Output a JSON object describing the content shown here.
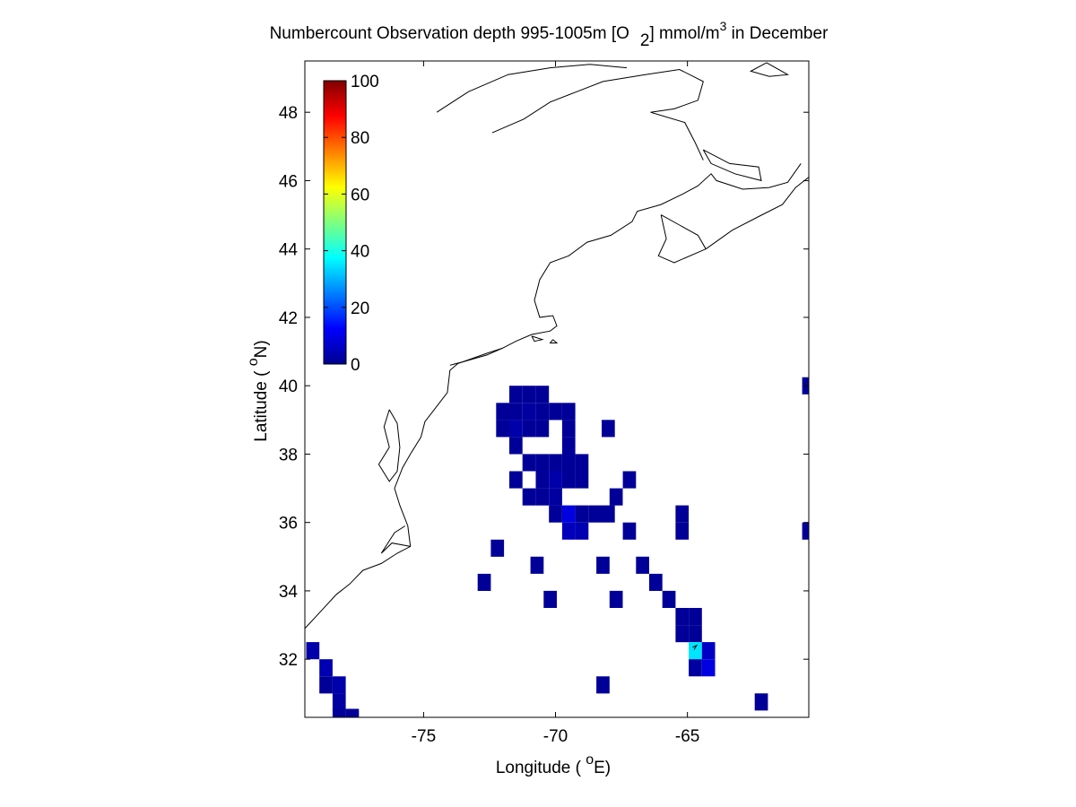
{
  "chart_data": {
    "type": "heatmap",
    "title": {
      "main": "Numbercount Observation depth 995-1005m [O",
      "sub": "2",
      "mid": "] mmol/m",
      "sup": "3",
      "tail": " in December"
    },
    "xlabel": {
      "pre": "Longitude ( ",
      "sup": "o",
      "post": "E)"
    },
    "ylabel": {
      "pre": "Latitude ( ",
      "sup": "o",
      "post": "N)"
    },
    "xlim": [
      -79.5,
      -60.4
    ],
    "ylim": [
      30.3,
      49.5
    ],
    "xticks": [
      -75,
      -70,
      -65
    ],
    "xtick_labels": [
      "-75",
      "-70",
      "-65"
    ],
    "yticks": [
      32,
      34,
      36,
      38,
      40,
      42,
      44,
      46,
      48
    ],
    "ytick_labels": [
      "32",
      "34",
      "36",
      "38",
      "40",
      "42",
      "44",
      "46",
      "48"
    ],
    "colorbar": {
      "range": [
        0,
        100
      ],
      "ticks": [
        0,
        20,
        40,
        60,
        80,
        100
      ],
      "tick_labels": [
        "0",
        "20",
        "40",
        "60",
        "80",
        "100"
      ],
      "colormap": "jet"
    },
    "grid": false,
    "cell_size": 0.5,
    "cells": [
      {
        "lon": -71.5,
        "lat": 39.75,
        "value": 1
      },
      {
        "lon": -71.0,
        "lat": 39.75,
        "value": 1
      },
      {
        "lon": -70.5,
        "lat": 39.75,
        "value": 1
      },
      {
        "lon": -72.0,
        "lat": 39.25,
        "value": 1
      },
      {
        "lon": -71.5,
        "lat": 39.25,
        "value": 1
      },
      {
        "lon": -71.0,
        "lat": 39.25,
        "value": 2
      },
      {
        "lon": -70.5,
        "lat": 39.25,
        "value": 1
      },
      {
        "lon": -70.0,
        "lat": 39.25,
        "value": 1
      },
      {
        "lon": -69.5,
        "lat": 39.25,
        "value": 1
      },
      {
        "lon": -72.0,
        "lat": 38.75,
        "value": 1
      },
      {
        "lon": -71.5,
        "lat": 38.75,
        "value": 3
      },
      {
        "lon": -71.0,
        "lat": 38.75,
        "value": 1
      },
      {
        "lon": -70.5,
        "lat": 38.75,
        "value": 1
      },
      {
        "lon": -69.5,
        "lat": 38.75,
        "value": 1
      },
      {
        "lon": -68.0,
        "lat": 38.75,
        "value": 1
      },
      {
        "lon": -71.5,
        "lat": 38.25,
        "value": 1
      },
      {
        "lon": -69.5,
        "lat": 38.25,
        "value": 1
      },
      {
        "lon": -71.0,
        "lat": 37.75,
        "value": 1
      },
      {
        "lon": -70.5,
        "lat": 37.75,
        "value": 1
      },
      {
        "lon": -70.0,
        "lat": 37.75,
        "value": 1
      },
      {
        "lon": -69.5,
        "lat": 37.75,
        "value": 1
      },
      {
        "lon": -69.0,
        "lat": 37.75,
        "value": 1
      },
      {
        "lon": -71.5,
        "lat": 37.25,
        "value": 1
      },
      {
        "lon": -70.5,
        "lat": 37.25,
        "value": 1
      },
      {
        "lon": -70.0,
        "lat": 37.25,
        "value": 3
      },
      {
        "lon": -69.5,
        "lat": 37.25,
        "value": 1
      },
      {
        "lon": -69.0,
        "lat": 37.25,
        "value": 1
      },
      {
        "lon": -67.2,
        "lat": 37.25,
        "value": 1
      },
      {
        "lon": -71.0,
        "lat": 36.75,
        "value": 1
      },
      {
        "lon": -70.5,
        "lat": 36.75,
        "value": 1
      },
      {
        "lon": -70.0,
        "lat": 36.75,
        "value": 2
      },
      {
        "lon": -67.7,
        "lat": 36.75,
        "value": 1
      },
      {
        "lon": -70.0,
        "lat": 36.25,
        "value": 1
      },
      {
        "lon": -69.5,
        "lat": 36.25,
        "value": 9
      },
      {
        "lon": -69.0,
        "lat": 36.25,
        "value": 1
      },
      {
        "lon": -68.5,
        "lat": 36.25,
        "value": 1
      },
      {
        "lon": -68.0,
        "lat": 36.25,
        "value": 1
      },
      {
        "lon": -65.2,
        "lat": 36.25,
        "value": 1
      },
      {
        "lon": -69.5,
        "lat": 35.75,
        "value": 5
      },
      {
        "lon": -69.0,
        "lat": 35.75,
        "value": 4
      },
      {
        "lon": -67.2,
        "lat": 35.75,
        "value": 1
      },
      {
        "lon": -65.2,
        "lat": 35.75,
        "value": 1
      },
      {
        "lon": -60.4,
        "lat": 35.75,
        "value": 1
      },
      {
        "lon": -72.2,
        "lat": 35.25,
        "value": 1
      },
      {
        "lon": -70.7,
        "lat": 34.75,
        "value": 1
      },
      {
        "lon": -68.2,
        "lat": 34.75,
        "value": 1
      },
      {
        "lon": -66.7,
        "lat": 34.75,
        "value": 1
      },
      {
        "lon": -72.7,
        "lat": 34.25,
        "value": 1
      },
      {
        "lon": -66.2,
        "lat": 34.25,
        "value": 1
      },
      {
        "lon": -70.2,
        "lat": 33.75,
        "value": 1
      },
      {
        "lon": -67.7,
        "lat": 33.75,
        "value": 1
      },
      {
        "lon": -65.7,
        "lat": 33.75,
        "value": 1
      },
      {
        "lon": -65.2,
        "lat": 33.25,
        "value": 1
      },
      {
        "lon": -64.7,
        "lat": 33.25,
        "value": 1
      },
      {
        "lon": -65.2,
        "lat": 32.75,
        "value": 1
      },
      {
        "lon": -64.7,
        "lat": 32.75,
        "value": 1
      },
      {
        "lon": -79.2,
        "lat": 32.25,
        "value": 3
      },
      {
        "lon": -64.7,
        "lat": 32.25,
        "value": 35
      },
      {
        "lon": -64.2,
        "lat": 32.25,
        "value": 6
      },
      {
        "lon": -78.7,
        "lat": 31.75,
        "value": 4
      },
      {
        "lon": -64.7,
        "lat": 31.75,
        "value": 2
      },
      {
        "lon": -64.2,
        "lat": 31.75,
        "value": 9
      },
      {
        "lon": -78.7,
        "lat": 31.25,
        "value": 1
      },
      {
        "lon": -78.2,
        "lat": 31.25,
        "value": 3
      },
      {
        "lon": -68.2,
        "lat": 31.25,
        "value": 1
      },
      {
        "lon": -78.2,
        "lat": 30.75,
        "value": 2
      },
      {
        "lon": -62.2,
        "lat": 30.75,
        "value": 1
      },
      {
        "lon": -78.2,
        "lat": 30.3,
        "value": 1
      },
      {
        "lon": -77.7,
        "lat": 30.3,
        "value": 1
      },
      {
        "lon": -60.4,
        "lat": 40.0,
        "value": 1
      }
    ],
    "coastline": [
      [
        [
          -79.5,
          32.9
        ],
        [
          -78.9,
          33.4
        ],
        [
          -78.3,
          33.9
        ],
        [
          -77.8,
          34.2
        ],
        [
          -77.3,
          34.6
        ],
        [
          -76.6,
          34.8
        ],
        [
          -76.0,
          35.1
        ],
        [
          -75.5,
          35.3
        ],
        [
          -75.6,
          35.9
        ],
        [
          -75.9,
          36.5
        ],
        [
          -76.1,
          37.0
        ],
        [
          -75.8,
          37.6
        ],
        [
          -75.5,
          38.0
        ],
        [
          -75.1,
          38.5
        ],
        [
          -74.95,
          38.95
        ],
        [
          -74.6,
          39.3
        ],
        [
          -74.1,
          39.8
        ],
        [
          -74.0,
          40.45
        ],
        [
          -73.7,
          40.65
        ],
        [
          -72.6,
          40.95
        ],
        [
          -72.0,
          41.1
        ],
        [
          -71.5,
          41.3
        ],
        [
          -70.9,
          41.5
        ],
        [
          -70.2,
          41.6
        ],
        [
          -69.95,
          41.75
        ],
        [
          -70.1,
          42.05
        ],
        [
          -70.6,
          42.0
        ],
        [
          -70.8,
          42.5
        ],
        [
          -70.6,
          43.1
        ],
        [
          -70.2,
          43.6
        ],
        [
          -69.5,
          43.8
        ],
        [
          -68.8,
          44.2
        ],
        [
          -67.9,
          44.4
        ],
        [
          -67.1,
          44.8
        ],
        [
          -66.9,
          45.1
        ],
        [
          -66.0,
          45.3
        ],
        [
          -65.2,
          45.6
        ],
        [
          -64.6,
          45.85
        ],
        [
          -64.1,
          46.2
        ],
        [
          -63.9,
          46.0
        ],
        [
          -62.9,
          45.75
        ],
        [
          -61.9,
          45.8
        ],
        [
          -61.2,
          45.95
        ],
        [
          -60.7,
          46.5
        ]
      ],
      [
        [
          -66.0,
          45.0
        ],
        [
          -65.3,
          44.7
        ],
        [
          -64.6,
          44.4
        ],
        [
          -64.3,
          44.0
        ],
        [
          -65.5,
          43.6
        ],
        [
          -66.1,
          43.8
        ],
        [
          -65.8,
          44.3
        ],
        [
          -66.0,
          45.0
        ]
      ],
      [
        [
          -64.3,
          44.0
        ],
        [
          -63.3,
          44.55
        ],
        [
          -62.3,
          44.95
        ],
        [
          -61.4,
          45.3
        ],
        [
          -60.9,
          45.8
        ],
        [
          -60.4,
          46.1
        ]
      ],
      [
        [
          -74.5,
          48.0
        ],
        [
          -73.3,
          48.6
        ],
        [
          -71.8,
          49.1
        ],
        [
          -70.2,
          49.3
        ],
        [
          -68.7,
          49.4
        ],
        [
          -67.3,
          49.3
        ]
      ],
      [
        [
          -72.4,
          47.4
        ],
        [
          -71.2,
          47.8
        ],
        [
          -70.2,
          48.3
        ],
        [
          -69.2,
          48.6
        ],
        [
          -68.2,
          48.9
        ],
        [
          -66.6,
          49.1
        ],
        [
          -65.3,
          49.25
        ],
        [
          -64.4,
          48.9
        ],
        [
          -64.6,
          48.35
        ],
        [
          -65.5,
          48.1
        ],
        [
          -66.4,
          48.0
        ],
        [
          -65.1,
          47.7
        ],
        [
          -64.7,
          47.1
        ],
        [
          -64.4,
          46.6
        ]
      ],
      [
        [
          -64.4,
          46.9
        ],
        [
          -63.4,
          46.5
        ],
        [
          -62.3,
          46.4
        ],
        [
          -62.2,
          46.0
        ],
        [
          -63.2,
          46.2
        ],
        [
          -64.1,
          46.5
        ],
        [
          -64.4,
          46.9
        ]
      ],
      [
        [
          -76.3,
          39.3
        ],
        [
          -76.5,
          38.8
        ],
        [
          -76.3,
          38.2
        ],
        [
          -76.7,
          37.7
        ],
        [
          -76.3,
          37.2
        ],
        [
          -76.0,
          37.5
        ],
        [
          -75.9,
          38.2
        ],
        [
          -76.0,
          38.9
        ],
        [
          -76.3,
          39.3
        ]
      ],
      [
        [
          -75.5,
          35.3
        ],
        [
          -76.2,
          35.4
        ],
        [
          -76.6,
          35.1
        ],
        [
          -76.1,
          35.7
        ],
        [
          -75.7,
          35.9
        ]
      ],
      [
        [
          -72.0,
          41.1
        ],
        [
          -72.6,
          40.9
        ],
        [
          -73.5,
          40.7
        ],
        [
          -74.0,
          40.6
        ]
      ],
      [
        [
          -70.9,
          41.45
        ],
        [
          -70.5,
          41.35
        ],
        [
          -70.8,
          41.3
        ],
        [
          -70.9,
          41.45
        ]
      ],
      [
        [
          -70.1,
          41.35
        ],
        [
          -69.95,
          41.25
        ],
        [
          -70.2,
          41.25
        ],
        [
          -70.1,
          41.35
        ]
      ],
      [
        [
          -62.0,
          49.45
        ],
        [
          -61.2,
          49.1
        ],
        [
          -61.9,
          49.05
        ],
        [
          -62.6,
          49.2
        ],
        [
          -62.0,
          49.45
        ]
      ],
      [
        [
          -64.8,
          32.35
        ],
        [
          -64.65,
          32.4
        ],
        [
          -64.75,
          32.28
        ]
      ]
    ]
  }
}
